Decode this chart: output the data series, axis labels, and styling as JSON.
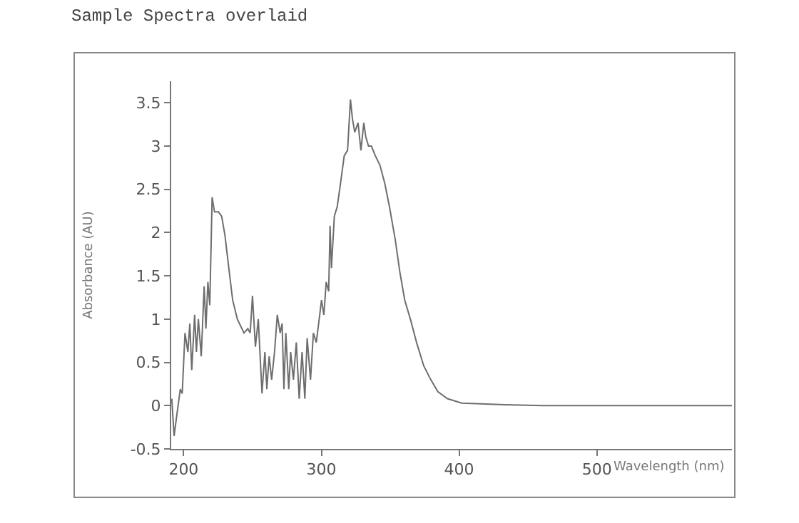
{
  "chart_data": {
    "type": "line",
    "title": "Sample Spectra overlaid",
    "xlabel": "Wavelength (nm)",
    "ylabel": "Absorbance (AU)",
    "xlim": [
      191,
      598
    ],
    "xticks": [
      200,
      300,
      400,
      500
    ],
    "ylim": [
      -0.5,
      3.75
    ],
    "yticks": [
      -0.5,
      0,
      0.5,
      1,
      1.5,
      2,
      2.5,
      3,
      3.5
    ],
    "grid": false,
    "marker": "none",
    "line_style": "solid",
    "series": [
      {
        "color": "#6e6e6e",
        "x": [
          191.4,
          193.1,
          194.8,
          197.6,
          199,
          201,
          203.1,
          204.5,
          205.9,
          208,
          209.3,
          210.7,
          212.8,
          214.9,
          216.2,
          217.6,
          219,
          220.7,
          222.4,
          225.2,
          227.6,
          230,
          232.8,
          235.6,
          239,
          243.8,
          246.6,
          248.3,
          250,
          252.1,
          254.2,
          256.9,
          259,
          260.4,
          262.1,
          263.9,
          266,
          268,
          270.1,
          271.5,
          272.8,
          274.2,
          276.3,
          277.7,
          279.7,
          281.8,
          283.9,
          286,
          288,
          289.7,
          292.1,
          294.2,
          296.3,
          298.4,
          300.1,
          301.8,
          303.5,
          305.3,
          306.3,
          307.3,
          309.4,
          311.5,
          313.9,
          316.6,
          319,
          321.1,
          322.5,
          324.2,
          326.6,
          328.7,
          330.8,
          332.2,
          334.2,
          336.3,
          339.1,
          342.5,
          346,
          349.4,
          353.6,
          357,
          360.5,
          364.6,
          369.1,
          374.3,
          379.4,
          384.6,
          391.5,
          401.9,
          415.7,
          432.9,
          460.5,
          495,
          598
        ],
        "values": [
          0.08,
          -0.35,
          -0.14,
          0.19,
          0.14,
          0.84,
          0.62,
          0.95,
          0.41,
          1.05,
          0.62,
          1.0,
          0.57,
          1.38,
          0.89,
          1.43,
          1.16,
          2.41,
          2.24,
          2.24,
          2.19,
          1.97,
          1.59,
          1.22,
          1.0,
          0.84,
          0.89,
          0.84,
          1.27,
          0.68,
          1.0,
          0.14,
          0.62,
          0.19,
          0.57,
          0.3,
          0.62,
          1.05,
          0.84,
          0.95,
          0.19,
          0.84,
          0.19,
          0.62,
          0.3,
          0.73,
          0.08,
          0.62,
          0.08,
          0.78,
          0.3,
          0.84,
          0.73,
          1.0,
          1.22,
          1.05,
          1.43,
          1.32,
          2.08,
          1.59,
          2.19,
          2.3,
          2.57,
          2.89,
          2.95,
          3.54,
          3.32,
          3.16,
          3.27,
          2.95,
          3.27,
          3.11,
          3.0,
          3.0,
          2.89,
          2.78,
          2.57,
          2.3,
          1.92,
          1.54,
          1.22,
          1.0,
          0.73,
          0.46,
          0.3,
          0.16,
          0.08,
          0.03,
          0.02,
          0.01,
          0.0,
          0.0,
          0.0
        ]
      }
    ]
  }
}
